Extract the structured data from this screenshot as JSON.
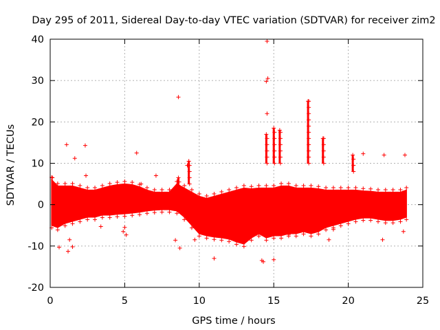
{
  "chart_data": {
    "type": "scatter",
    "title": "Day 295 of 2011, Sidereal Day-to-day VTEC variation (SDTVAR) for receiver zim2",
    "xlabel": "GPS time / hours",
    "ylabel": "SDTVAR / TECUs",
    "xlim": [
      0,
      25
    ],
    "ylim": [
      -20,
      40
    ],
    "xticks": [
      0,
      5,
      10,
      15,
      20,
      25
    ],
    "yticks": [
      -20,
      -10,
      0,
      10,
      20,
      30,
      40
    ],
    "grid": true,
    "marker": "+",
    "series": [
      {
        "name": "SDTVAR",
        "color": "#ff0000",
        "band": [
          [
            0.1,
            -5,
            6
          ],
          [
            0.5,
            -5.5,
            4.5
          ],
          [
            1.0,
            -4.5,
            4.5
          ],
          [
            1.5,
            -4,
            4.5
          ],
          [
            2.0,
            -3.5,
            4
          ],
          [
            2.5,
            -3,
            3.5
          ],
          [
            3.0,
            -3,
            3.5
          ],
          [
            3.5,
            -2.5,
            4
          ],
          [
            4.0,
            -2.5,
            4.5
          ],
          [
            4.5,
            -2.3,
            4.8
          ],
          [
            5.0,
            -2.2,
            5
          ],
          [
            5.5,
            -2,
            4.8
          ],
          [
            6.0,
            -1.8,
            4.3
          ],
          [
            6.5,
            -1.5,
            3.5
          ],
          [
            7.0,
            -1.3,
            3
          ],
          [
            7.5,
            -1.2,
            3
          ],
          [
            8.0,
            -1.2,
            3
          ],
          [
            8.5,
            -1.5,
            5
          ],
          [
            9.0,
            -3,
            4
          ],
          [
            9.5,
            -5,
            3
          ],
          [
            10.0,
            -7,
            2
          ],
          [
            10.5,
            -7.5,
            1.5
          ],
          [
            11.0,
            -7.8,
            2
          ],
          [
            11.5,
            -8,
            2.5
          ],
          [
            12.0,
            -8.3,
            3
          ],
          [
            12.5,
            -9,
            3.5
          ],
          [
            13.0,
            -9.5,
            4
          ],
          [
            13.5,
            -8,
            3.8
          ],
          [
            14.0,
            -7,
            4
          ],
          [
            14.5,
            -8,
            4
          ],
          [
            15.0,
            -7.5,
            4
          ],
          [
            15.5,
            -7.5,
            4.5
          ],
          [
            16.0,
            -7,
            4.5
          ],
          [
            16.5,
            -7,
            4
          ],
          [
            17.0,
            -6.5,
            4
          ],
          [
            17.5,
            -7,
            4
          ],
          [
            18.0,
            -6.5,
            3.8
          ],
          [
            18.5,
            -5.5,
            3.5
          ],
          [
            19.0,
            -5,
            3.5
          ],
          [
            19.5,
            -4.5,
            3.5
          ],
          [
            20.0,
            -4,
            3.5
          ],
          [
            20.5,
            -3.5,
            3.5
          ],
          [
            21.0,
            -3.2,
            3.3
          ],
          [
            21.5,
            -3.2,
            3.2
          ],
          [
            22.0,
            -3.5,
            3
          ],
          [
            22.5,
            -3.8,
            3
          ],
          [
            23.0,
            -3.8,
            3
          ],
          [
            23.5,
            -3.5,
            3
          ],
          [
            23.9,
            -3,
            3.5
          ]
        ],
        "spikes": [
          [
            14.5,
            10,
            17
          ],
          [
            15.0,
            10,
            18.5
          ],
          [
            15.4,
            10,
            18
          ],
          [
            17.3,
            10,
            25
          ],
          [
            18.3,
            10,
            16
          ],
          [
            20.3,
            8,
            12
          ],
          [
            8.6,
            4,
            6.5
          ],
          [
            9.3,
            5,
            10.5
          ]
        ],
        "points": [
          [
            14.55,
            39.5
          ],
          [
            14.6,
            30.5
          ],
          [
            14.5,
            29.8
          ],
          [
            8.6,
            26
          ],
          [
            14.55,
            22
          ],
          [
            1.1,
            14.5
          ],
          [
            2.35,
            14.3
          ],
          [
            5.8,
            12.5
          ],
          [
            1.65,
            11.2
          ],
          [
            23.8,
            12
          ],
          [
            22.4,
            12
          ],
          [
            21.0,
            12.3
          ],
          [
            9.3,
            10.5
          ],
          [
            9.2,
            9.5
          ],
          [
            2.4,
            7
          ],
          [
            0.15,
            6.5
          ],
          [
            7.1,
            7
          ],
          [
            6.1,
            5
          ],
          [
            1.2,
            -11.3
          ],
          [
            1.5,
            -10.2
          ],
          [
            0.6,
            -10.3
          ],
          [
            1.3,
            -8.5
          ],
          [
            8.7,
            -10.5
          ],
          [
            11.0,
            -13
          ],
          [
            14.2,
            -13.5
          ],
          [
            14.3,
            -13.8
          ],
          [
            15.0,
            -13.3
          ],
          [
            8.4,
            -8.6
          ],
          [
            5.1,
            -7.3
          ],
          [
            5.0,
            -5.5
          ],
          [
            3.4,
            -5.3
          ],
          [
            4.9,
            -6.5
          ],
          [
            18.7,
            -8.5
          ],
          [
            23.7,
            -6.5
          ],
          [
            22.3,
            -8.5
          ],
          [
            19.0,
            -6
          ],
          [
            16.0,
            -7.2
          ],
          [
            9.7,
            -8.5
          ]
        ]
      }
    ]
  }
}
